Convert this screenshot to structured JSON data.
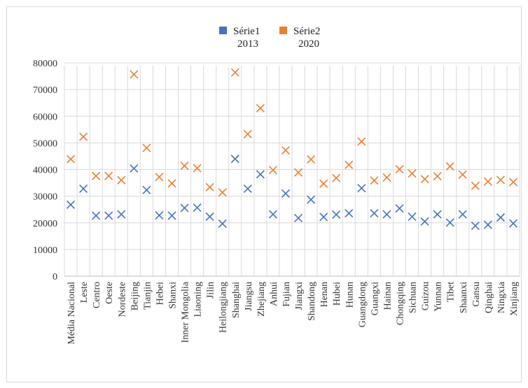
{
  "chart_data": {
    "type": "scatter",
    "marker": "x",
    "categories": [
      "Média Nacional",
      "Leste",
      "Centro",
      "Oeste",
      "Nordeste",
      "Beijing",
      "Tianjin",
      "Hebei",
      "Shanxi",
      "Inner Mongolia",
      "Liaoning",
      "Jilin",
      "Heilongjiang",
      "Shanghai",
      "Jiangsu",
      "Zhejiang",
      "Anhui",
      "Fujian",
      "Jiangxi",
      "Shandong",
      "Henan",
      "Hubei",
      "Hunan",
      "Guangdong",
      "Guangxi",
      "Hainan",
      "Chongqing",
      "Sichuan",
      "Guizou",
      "Yunnan",
      "Tibet",
      "Shaanxi",
      "Gansu",
      "Qinghai",
      "Ningxia",
      "Xinjiang"
    ],
    "series": [
      {
        "name": "Série1",
        "sublabel": "2013",
        "color": "#4472c4",
        "values": [
          26800,
          32800,
          22700,
          22700,
          23200,
          40400,
          32300,
          22800,
          22700,
          25600,
          25700,
          22300,
          19700,
          44000,
          32800,
          38200,
          23200,
          31000,
          21800,
          28700,
          22200,
          23100,
          23600,
          33000,
          23600,
          23200,
          25400,
          22300,
          20500,
          23200,
          20100,
          23200,
          18900,
          19300,
          22000,
          19800
        ]
      },
      {
        "name": "Série2",
        "sublabel": "2020",
        "color": "#ed7d31",
        "values": [
          43900,
          52300,
          37600,
          37600,
          36000,
          75700,
          48100,
          37200,
          34800,
          41400,
          40500,
          33400,
          31400,
          76400,
          53300,
          63000,
          39800,
          47200,
          38900,
          43800,
          34700,
          36800,
          41800,
          50500,
          35900,
          37000,
          40100,
          38500,
          36400,
          37500,
          41200,
          38100,
          33900,
          35500,
          36100,
          35300
        ]
      }
    ],
    "ylim": [
      0,
      80000
    ],
    "yticks": [
      "0",
      "10000",
      "20000",
      "30000",
      "40000",
      "50000",
      "60000",
      "70000",
      "80000"
    ],
    "grid": true,
    "legend": "top-center"
  }
}
